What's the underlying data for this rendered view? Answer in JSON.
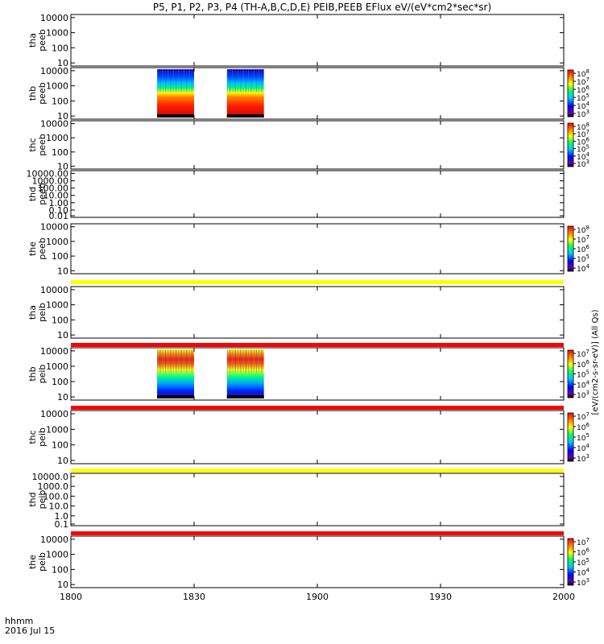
{
  "title": "P5, P1, P2, P3, P4 (TH-A,B,C,D,E) PEIB,PEEB EFlux eV/(eV*cm2*sec*sr)",
  "footer": {
    "xunit": "hhmm",
    "date": "2016 Jul 15"
  },
  "right_label": "[eV/(cm2-s-sr-eV)]  (All Qs)",
  "colors": {
    "band_yellow": "#ffff00",
    "band_red": "#ff0000",
    "axis": "#000000"
  },
  "chart_data": {
    "type": "heatmap",
    "x_range": [
      "18:00",
      "20:00"
    ],
    "x_ticks": [
      "1800",
      "1830",
      "1900",
      "1930",
      "2000"
    ],
    "panels": [
      {
        "label": [
          "tha",
          "peeb"
        ],
        "yticks": [
          "10000",
          "1000",
          "100",
          "10"
        ],
        "data_blocks": [],
        "colorbar": null
      },
      {
        "label": [
          "thb",
          "peeb"
        ],
        "yticks": [
          "10000",
          "1000",
          "100",
          "10"
        ],
        "data_blocks": [
          {
            "start": "18:21",
            "end": "18:30",
            "type": "electron"
          },
          {
            "start": "18:38",
            "end": "18:47",
            "type": "electron"
          }
        ],
        "colorbar": {
          "ticks": [
            "10^8",
            "10^7",
            "10^6",
            "10^5",
            "10^4",
            "10^3"
          ]
        }
      },
      {
        "label": [
          "thc",
          "peeb"
        ],
        "yticks": [
          "10000",
          "1000",
          "100",
          "10"
        ],
        "data_blocks": [],
        "colorbar": {
          "ticks": [
            "10^8",
            "10^7",
            "10^6",
            "10^5",
            "10^4",
            "10^3"
          ]
        }
      },
      {
        "label": [
          "thd",
          "peeb"
        ],
        "yticks": [
          "10000.00",
          "1000.00",
          "100.00",
          "10.00",
          "1.00",
          "0.10",
          "0.01"
        ],
        "data_blocks": [],
        "colorbar": null
      },
      {
        "label": [
          "the",
          "peeb"
        ],
        "yticks": [
          "10000",
          "1000",
          "100",
          "10"
        ],
        "data_blocks": [],
        "colorbar": {
          "ticks": [
            "10^8",
            "10^7",
            "10^6",
            "10^5",
            "10^4"
          ]
        },
        "band_below": "yellow"
      },
      {
        "label": [
          "tha",
          "peib"
        ],
        "yticks": [
          "10000",
          "1000",
          "100",
          "10"
        ],
        "data_blocks": [],
        "colorbar": null,
        "band_below": "red"
      },
      {
        "label": [
          "thb",
          "peib"
        ],
        "yticks": [
          "10000",
          "1000",
          "100",
          "10"
        ],
        "data_blocks": [
          {
            "start": "18:21",
            "end": "18:30",
            "type": "ion"
          },
          {
            "start": "18:38",
            "end": "18:47",
            "type": "ion"
          }
        ],
        "colorbar": {
          "ticks": [
            "10^7",
            "10^6",
            "10^5",
            "10^4",
            "10^3"
          ]
        },
        "band_below": "red"
      },
      {
        "label": [
          "thc",
          "peib"
        ],
        "yticks": [
          "10000",
          "1000",
          "100",
          "10"
        ],
        "data_blocks": [],
        "colorbar": {
          "ticks": [
            "10^7",
            "10^6",
            "10^5",
            "10^4",
            "10^3"
          ]
        },
        "band_below": "yellow"
      },
      {
        "label": [
          "thd",
          "peib"
        ],
        "yticks": [
          "10000.0",
          "1000.0",
          "100.0",
          "10.0",
          "1.0",
          "0.1"
        ],
        "data_blocks": [],
        "colorbar": null,
        "band_below": "red"
      },
      {
        "label": [
          "the",
          "peib"
        ],
        "yticks": [
          "10000",
          "1000",
          "100",
          "10"
        ],
        "data_blocks": [],
        "colorbar": {
          "ticks": [
            "10^7",
            "10^6",
            "10^5",
            "10^4",
            "10^3"
          ]
        }
      }
    ]
  }
}
